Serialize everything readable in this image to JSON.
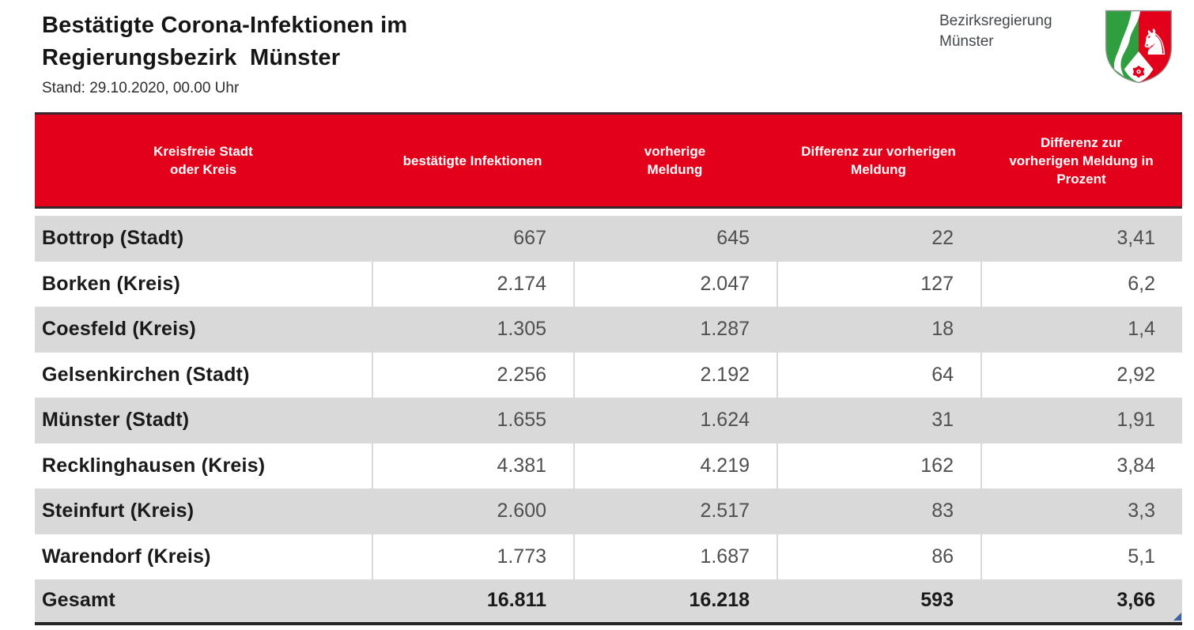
{
  "title": {
    "line1": "Bestätigte Corona-Infektionen im",
    "line2": "Regierungsbezirk  Münster",
    "stand": "Stand: 29.10.2020, 00.00 Uhr"
  },
  "brand": {
    "org_line1": "Bezirksregierung",
    "org_line2": "Münster",
    "logo_name": "nrw-coat-of-arms",
    "horse_glyph": "♞"
  },
  "table": {
    "columns": [
      {
        "label": "Kreisfreie Stadt\noder Kreis"
      },
      {
        "label": "bestätigte Infektionen"
      },
      {
        "label": "vorherige\nMeldung"
      },
      {
        "label": "Differenz zur vorherigen\nMeldung"
      },
      {
        "label": "Differenz zur\nvorherigen Meldung in\nProzent"
      }
    ],
    "rows": [
      {
        "name": "Bottrop (Stadt)",
        "confirmed": "667",
        "previous": "645",
        "diff": "22",
        "diff_pct": "3,41"
      },
      {
        "name": "Borken (Kreis)",
        "confirmed": "2.174",
        "previous": "2.047",
        "diff": "127",
        "diff_pct": "6,2"
      },
      {
        "name": "Coesfeld (Kreis)",
        "confirmed": "1.305",
        "previous": "1.287",
        "diff": "18",
        "diff_pct": "1,4"
      },
      {
        "name": "Gelsenkirchen (Stadt)",
        "confirmed": "2.256",
        "previous": "2.192",
        "diff": "64",
        "diff_pct": "2,92"
      },
      {
        "name": "Münster (Stadt)",
        "confirmed": "1.655",
        "previous": "1.624",
        "diff": "31",
        "diff_pct": "1,91"
      },
      {
        "name": "Recklinghausen (Kreis)",
        "confirmed": "4.381",
        "previous": "4.219",
        "diff": "162",
        "diff_pct": "3,84"
      },
      {
        "name": "Steinfurt (Kreis)",
        "confirmed": "2.600",
        "previous": "2.517",
        "diff": "83",
        "diff_pct": "3,3"
      },
      {
        "name": "Warendorf (Kreis)",
        "confirmed": "1.773",
        "previous": "1.687",
        "diff": "86",
        "diff_pct": "5,1"
      }
    ],
    "total": {
      "name": "Gesamt",
      "confirmed": "16.811",
      "previous": "16.218",
      "diff": "593",
      "diff_pct": "3,66"
    }
  },
  "colors": {
    "header_red": "#e2001a",
    "row_gray": "#d9d9d9",
    "border_dark": "#3a262a",
    "bottom_border": "#262626",
    "accent_blue": "#3f62a0",
    "nrw_green": "#2f9e3f",
    "nrw_red": "#e2001a",
    "text_dark": "#1a1a1a",
    "text_num": "#4f4f4f"
  }
}
